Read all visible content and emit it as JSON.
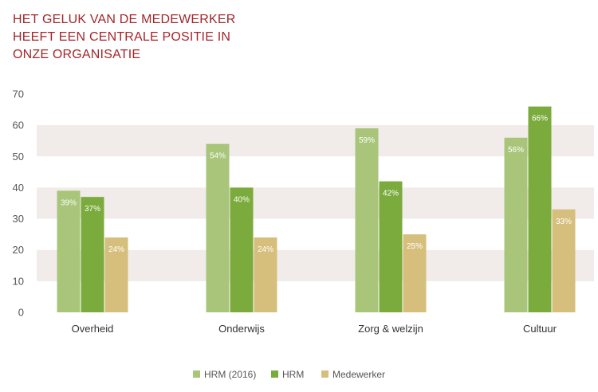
{
  "title_lines": [
    "HET GELUK VAN DE MEDEWERKER",
    "HEEFT EEN CENTRALE POSITIE IN",
    "ONZE ORGANISATIE"
  ],
  "colors": {
    "title": "#a3262a",
    "band": "#f1ece9",
    "axis_text": "#555555"
  },
  "chart_data": {
    "type": "bar",
    "title": "HET GELUK VAN DE MEDEWERKER HEEFT EEN CENTRALE POSITIE IN ONZE ORGANISATIE",
    "xlabel": "",
    "ylabel": "",
    "ylim": [
      0,
      70
    ],
    "yticks": [
      0,
      10,
      20,
      30,
      40,
      50,
      60,
      70
    ],
    "grid": "alternating horizontal bands",
    "legend_position": "bottom",
    "categories": [
      "Overheid",
      "Onderwijs",
      "Zorg & welzijn",
      "Cultuur"
    ],
    "series": [
      {
        "name": "HRM (2016)",
        "color": "#a8c57a",
        "values": [
          39,
          54,
          59,
          56
        ],
        "labels": [
          "39%",
          "54%",
          "59%",
          "56%"
        ]
      },
      {
        "name": "HRM",
        "color": "#7aab3c",
        "values": [
          37,
          40,
          42,
          66
        ],
        "labels": [
          "37%",
          "40%",
          "42%",
          "66%"
        ]
      },
      {
        "name": "Medewerker",
        "color": "#d6bf7c",
        "values": [
          24,
          24,
          25,
          33
        ],
        "labels": [
          "24%",
          "24%",
          "25%",
          "33%"
        ]
      }
    ]
  }
}
